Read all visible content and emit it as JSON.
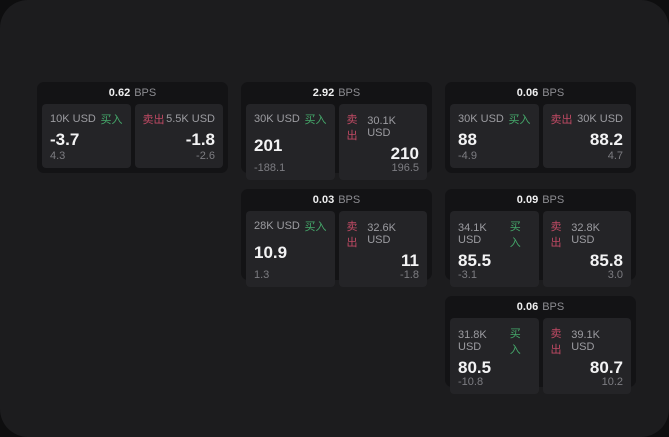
{
  "labels": {
    "bps": "BPS",
    "buy": "买入",
    "sell": "卖出"
  },
  "colors": {
    "backdrop": "#0e0e0f",
    "panel": "#1c1c1e",
    "card": "#131315",
    "tile": "#242427",
    "buy": "#45a96b",
    "sell": "#c04a64"
  },
  "cards": [
    {
      "bps": "0.62",
      "buy": {
        "notional": "10K USD",
        "price": "-3.7",
        "delta": "4.3"
      },
      "sell": {
        "notional": "5.5K USD",
        "price": "-1.8",
        "delta": "-2.6"
      }
    },
    {
      "bps": "2.92",
      "buy": {
        "notional": "30K USD",
        "price": "201",
        "delta": "-188.1"
      },
      "sell": {
        "notional": "30.1K USD",
        "price": "210",
        "delta": "196.5"
      }
    },
    {
      "bps": "0.06",
      "buy": {
        "notional": "30K USD",
        "price": "88",
        "delta": "-4.9"
      },
      "sell": {
        "notional": "30K USD",
        "price": "88.2",
        "delta": "4.7"
      }
    },
    {
      "bps": "0.03",
      "buy": {
        "notional": "28K USD",
        "price": "10.9",
        "delta": "1.3"
      },
      "sell": {
        "notional": "32.6K USD",
        "price": "11",
        "delta": "-1.8"
      }
    },
    {
      "bps": "0.09",
      "buy": {
        "notional": "34.1K USD",
        "price": "85.5",
        "delta": "-3.1"
      },
      "sell": {
        "notional": "32.8K USD",
        "price": "85.8",
        "delta": "3.0"
      }
    },
    {
      "bps": "0.06",
      "buy": {
        "notional": "31.8K USD",
        "price": "80.5",
        "delta": "-10.8"
      },
      "sell": {
        "notional": "39.1K USD",
        "price": "80.7",
        "delta": "10.2"
      }
    }
  ]
}
